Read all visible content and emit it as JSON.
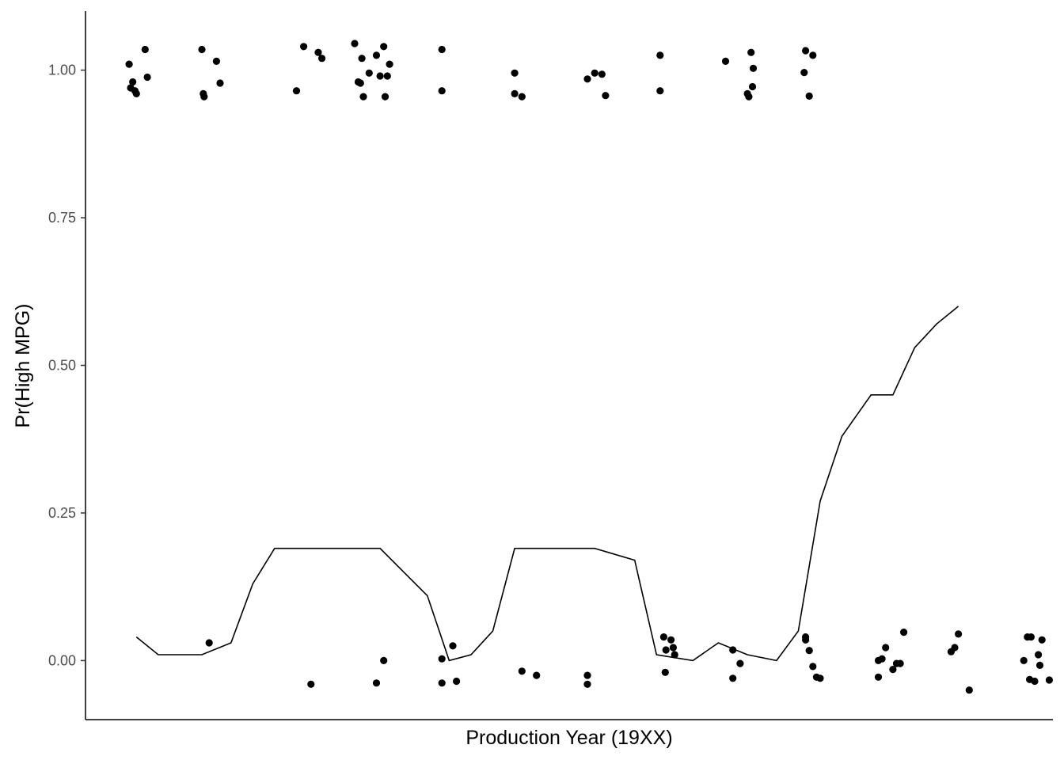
{
  "chart_data": {
    "type": "scatter",
    "title": "",
    "xlabel": "Production Year (19XX)",
    "ylabel": "Pr(High MPG)",
    "x_tick_labels_shown": false,
    "ylim": [
      -0.1,
      1.1
    ],
    "xlim": [
      69.4,
      82.7
    ],
    "y_ticks": [
      {
        "value": 0.0,
        "label": "0.00"
      },
      {
        "value": 0.25,
        "label": "0.25"
      },
      {
        "value": 0.5,
        "label": "0.50"
      },
      {
        "value": 0.75,
        "label": "0.75"
      },
      {
        "value": 1.0,
        "label": "1.00"
      }
    ],
    "grid": false,
    "point_color": "#000000",
    "line_color": "#000000",
    "series": [
      {
        "kind": "points",
        "points": [
          [
            70.0,
            1.01
          ],
          [
            70.05,
            0.98
          ],
          [
            70.02,
            0.97
          ],
          [
            70.08,
            0.965
          ],
          [
            70.1,
            0.96
          ],
          [
            70.22,
            1.035
          ],
          [
            70.25,
            0.988
          ],
          [
            71.0,
            1.035
          ],
          [
            71.02,
            0.96
          ],
          [
            71.03,
            0.955
          ],
          [
            71.2,
            1.015
          ],
          [
            71.25,
            0.978
          ],
          [
            72.3,
            0.965
          ],
          [
            72.4,
            1.04
          ],
          [
            72.6,
            1.03
          ],
          [
            72.65,
            1.02
          ],
          [
            73.1,
            1.045
          ],
          [
            73.2,
            1.02
          ],
          [
            73.15,
            0.98
          ],
          [
            73.18,
            0.978
          ],
          [
            73.22,
            0.955
          ],
          [
            73.3,
            0.995
          ],
          [
            73.4,
            1.025
          ],
          [
            73.45,
            0.99
          ],
          [
            73.5,
            1.04
          ],
          [
            73.55,
            0.99
          ],
          [
            73.52,
            0.955
          ],
          [
            73.58,
            1.01
          ],
          [
            74.3,
            1.035
          ],
          [
            74.3,
            0.965
          ],
          [
            75.3,
            0.995
          ],
          [
            75.3,
            0.96
          ],
          [
            75.4,
            0.955
          ],
          [
            76.3,
            0.985
          ],
          [
            76.4,
            0.995
          ],
          [
            76.5,
            0.993
          ],
          [
            76.55,
            0.957
          ],
          [
            77.3,
            1.025
          ],
          [
            77.3,
            0.965
          ],
          [
            78.2,
            1.015
          ],
          [
            78.5,
            0.96
          ],
          [
            78.52,
            0.955
          ],
          [
            78.55,
            1.03
          ],
          [
            78.58,
            1.003
          ],
          [
            78.57,
            0.972
          ],
          [
            79.3,
            1.033
          ],
          [
            79.28,
            0.996
          ],
          [
            79.35,
            0.956
          ],
          [
            79.4,
            1.025
          ],
          [
            71.1,
            0.03
          ],
          [
            72.5,
            -0.04
          ],
          [
            73.4,
            -0.038
          ],
          [
            73.5,
            0.0
          ],
          [
            74.3,
            0.003
          ],
          [
            74.3,
            -0.038
          ],
          [
            74.45,
            0.025
          ],
          [
            74.5,
            -0.035
          ],
          [
            75.4,
            -0.018
          ],
          [
            75.6,
            -0.025
          ],
          [
            76.3,
            -0.025
          ],
          [
            76.3,
            -0.04
          ],
          [
            77.35,
            0.04
          ],
          [
            77.38,
            0.018
          ],
          [
            77.37,
            -0.02
          ],
          [
            77.45,
            0.035
          ],
          [
            77.48,
            0.022
          ],
          [
            77.5,
            0.01
          ],
          [
            78.3,
            0.018
          ],
          [
            78.3,
            -0.03
          ],
          [
            78.4,
            -0.005
          ],
          [
            79.3,
            0.04
          ],
          [
            79.3,
            0.035
          ],
          [
            79.35,
            0.017
          ],
          [
            79.4,
            -0.01
          ],
          [
            79.45,
            -0.028
          ],
          [
            79.5,
            -0.03
          ],
          [
            80.3,
            0.0
          ],
          [
            80.35,
            0.003
          ],
          [
            80.3,
            -0.028
          ],
          [
            80.4,
            0.022
          ],
          [
            80.5,
            -0.015
          ],
          [
            80.55,
            -0.005
          ],
          [
            80.6,
            -0.005
          ],
          [
            80.65,
            0.048
          ],
          [
            81.3,
            0.015
          ],
          [
            81.35,
            0.022
          ],
          [
            81.4,
            0.045
          ],
          [
            81.55,
            -0.05
          ],
          [
            82.3,
            0.0
          ],
          [
            82.35,
            0.04
          ],
          [
            82.4,
            0.04
          ],
          [
            82.38,
            -0.032
          ],
          [
            82.45,
            -0.035
          ],
          [
            82.5,
            0.01
          ],
          [
            82.55,
            0.035
          ],
          [
            82.52,
            -0.008
          ],
          [
            82.65,
            -0.033
          ]
        ]
      },
      {
        "kind": "line",
        "points": [
          [
            70.1,
            0.04
          ],
          [
            70.4,
            0.01
          ],
          [
            70.7,
            0.01
          ],
          [
            71.0,
            0.01
          ],
          [
            71.4,
            0.03
          ],
          [
            71.7,
            0.13
          ],
          [
            72.0,
            0.19
          ],
          [
            72.3,
            0.19
          ],
          [
            73.0,
            0.19
          ],
          [
            73.45,
            0.19
          ],
          [
            74.1,
            0.11
          ],
          [
            74.4,
            0.0
          ],
          [
            74.7,
            0.01
          ],
          [
            75.0,
            0.05
          ],
          [
            75.3,
            0.19
          ],
          [
            75.7,
            0.19
          ],
          [
            76.0,
            0.19
          ],
          [
            76.4,
            0.19
          ],
          [
            76.95,
            0.17
          ],
          [
            77.25,
            0.01
          ],
          [
            77.75,
            0.0
          ],
          [
            78.1,
            0.03
          ],
          [
            78.5,
            0.01
          ],
          [
            78.9,
            0.0
          ],
          [
            79.2,
            0.05
          ],
          [
            79.5,
            0.27
          ],
          [
            79.8,
            0.38
          ],
          [
            80.2,
            0.45
          ],
          [
            80.5,
            0.45
          ],
          [
            80.8,
            0.53
          ],
          [
            81.1,
            0.57
          ],
          [
            81.4,
            0.6
          ]
        ]
      }
    ]
  }
}
